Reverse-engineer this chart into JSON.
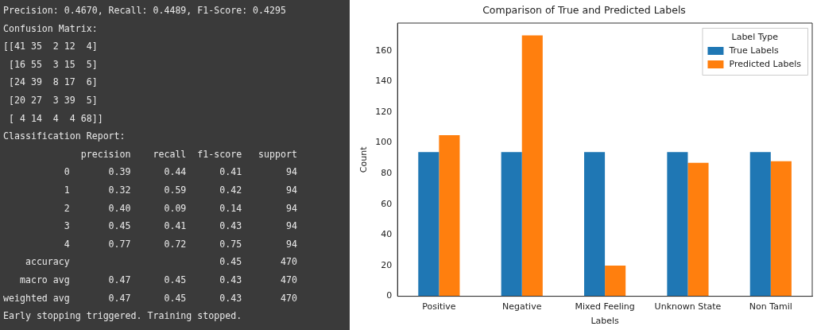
{
  "chart_data": [
    {
      "type": "other",
      "annotations": [
        "Precision: 0.4670, Recall: 0.4489, F1-Score: 0.4295",
        "Confusion Matrix:",
        "[[41 35  2 12  4]",
        " [16 55  3 15  5]",
        " [24 39  8 17  6]",
        " [20 27  3 39  5]",
        " [ 4 14  4  4 68]]",
        "Classification Report:",
        "              precision    recall  f1-score   support",
        "           0       0.39      0.44      0.41        94",
        "           1       0.32      0.59      0.42        94",
        "           2       0.40      0.09      0.14        94",
        "           3       0.45      0.41      0.43        94",
        "           4       0.77      0.72      0.75        94",
        "    accuracy                           0.45       470",
        "   macro avg       0.47      0.45      0.43       470",
        "weighted avg       0.47      0.45      0.43       470",
        "Early stopping triggered. Training stopped."
      ]
    },
    {
      "type": "bar",
      "title": "Comparison of True and Predicted Labels",
      "xlabel": "Labels",
      "ylabel": "Count",
      "legend_title": "Label Type",
      "legend": "top right",
      "grid": false,
      "categories": [
        "Positive",
        "Negative",
        "Mixed Feeling",
        "Unknown State",
        "Non Tamil"
      ],
      "series": [
        {
          "name": "True Labels",
          "color": "#1f77b4",
          "values": [
            94,
            94,
            94,
            94,
            94
          ]
        },
        {
          "name": "Predicted Labels",
          "color": "#ff7f0e",
          "values": [
            105,
            170,
            20,
            87,
            88
          ]
        }
      ],
      "ylim": [
        0,
        178
      ],
      "yticks": [
        0,
        20,
        40,
        60,
        80,
        100,
        120,
        140,
        160
      ]
    }
  ]
}
